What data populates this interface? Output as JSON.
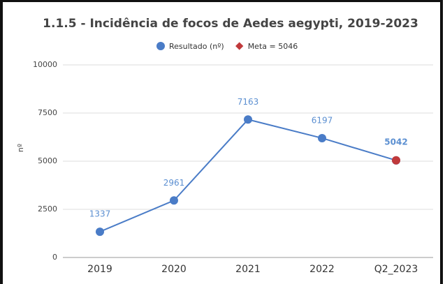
{
  "chart_data": {
    "type": "line",
    "title": "1.1.5 - Incidência de focos de Aedes aegypti, 2019-2023",
    "y_label": "nº",
    "categories": [
      "2019",
      "2020",
      "2021",
      "2022",
      "Q2_2023"
    ],
    "series": [
      {
        "name": "Resultado (nº)",
        "color": "#4a7cc7",
        "marker": "circle",
        "values": [
          1337,
          2961,
          7163,
          6197,
          5042
        ]
      },
      {
        "name": "Meta = 5046",
        "color": "#c0393b",
        "marker": "diamond",
        "values": [
          null,
          null,
          null,
          null,
          5046
        ]
      }
    ],
    "ylim": [
      0,
      10000
    ],
    "yticks": [
      0,
      2500,
      5000,
      7500,
      10000
    ],
    "grid": true,
    "legend": "top"
  }
}
